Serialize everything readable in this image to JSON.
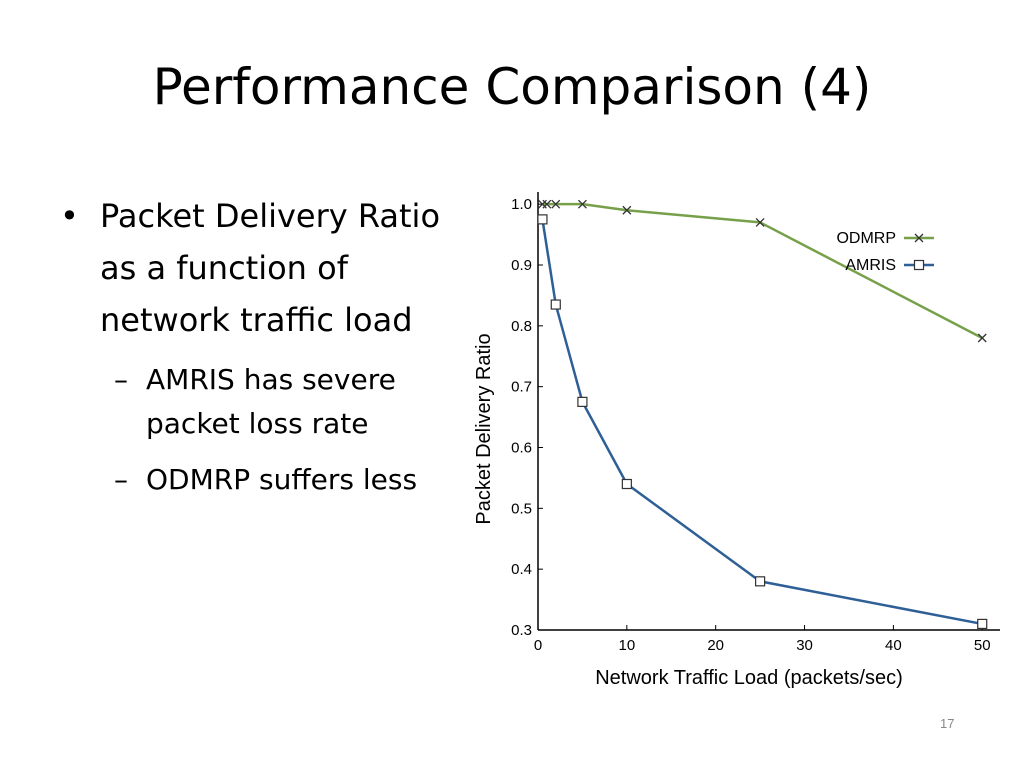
{
  "slide": {
    "title": "Performance Comparison (4)",
    "page_number": "17",
    "bullets": [
      {
        "level": 1,
        "marker": "•",
        "lines": [
          "Packet Delivery Ratio",
          "as a function of",
          "network traffic load"
        ]
      },
      {
        "level": 2,
        "marker": "–",
        "lines": [
          "AMRIS has severe",
          "packet loss rate"
        ]
      },
      {
        "level": 2,
        "marker": "–",
        "lines": [
          "ODMRP suffers less"
        ]
      }
    ]
  },
  "chart_data": {
    "type": "line",
    "title": "",
    "xlabel": "Network Traffic Load (packets/sec)",
    "ylabel": "Packet Delivery Ratio",
    "xlim": [
      0,
      52
    ],
    "ylim": [
      0.3,
      1.02
    ],
    "xticks": [
      0,
      10,
      20,
      30,
      40,
      50
    ],
    "xtick_labels": [
      "0",
      "10",
      "20",
      "30",
      "40",
      "50"
    ],
    "yticks": [
      0.3,
      0.4,
      0.5,
      0.6,
      0.7,
      0.8,
      0.9,
      1.0
    ],
    "ytick_labels": [
      "0.3",
      "0.4",
      "0.5",
      "0.6",
      "0.7",
      "0.8",
      "0.9",
      "1.0"
    ],
    "grid": false,
    "legend_position": "top-right",
    "series": [
      {
        "name": "ODMRP",
        "color": "#77a04a",
        "marker": "x",
        "x": [
          0.5,
          1,
          2,
          5,
          10,
          25,
          50
        ],
        "y": [
          1.0,
          1.0,
          1.0,
          1.0,
          0.99,
          0.97,
          0.78
        ]
      },
      {
        "name": "AMRIS",
        "color": "#2e5f96",
        "marker": "square",
        "x": [
          0.5,
          2,
          5,
          10,
          25,
          50
        ],
        "y": [
          0.975,
          0.835,
          0.675,
          0.54,
          0.38,
          0.31
        ]
      }
    ]
  }
}
